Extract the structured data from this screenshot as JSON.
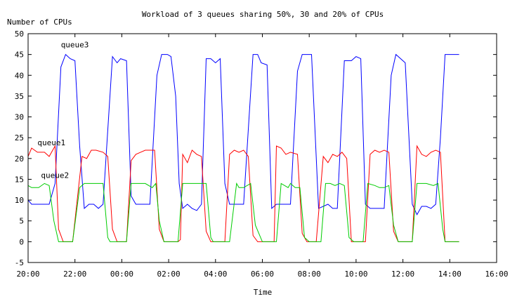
{
  "chart_data": {
    "type": "line",
    "title": "Workload of 3 queues sharing 50%, 30 and 20% of CPUs",
    "xlabel": "Time",
    "ylabel": "Number of CPUs",
    "ylim": [
      -5,
      50
    ],
    "yticks": [
      -5,
      0,
      5,
      10,
      15,
      20,
      25,
      30,
      35,
      40,
      45,
      50
    ],
    "xlim": [
      0,
      20
    ],
    "xtick_values": [
      0,
      2,
      4,
      6,
      8,
      10,
      12,
      14,
      16,
      18,
      20
    ],
    "xtick_labels": [
      "20:00",
      "22:00",
      "00:00",
      "02:00",
      "04:00",
      "06:00",
      "08:00",
      "10:00",
      "12:00",
      "14:00",
      "16:00"
    ],
    "grid": false,
    "legend": "inline labels",
    "series": [
      {
        "name": "queue3",
        "color": "#0000ff",
        "label_at": [
          1.4,
          46.7
        ],
        "points": [
          [
            0.0,
            10.0
          ],
          [
            0.15,
            9.0
          ],
          [
            0.9,
            9.0
          ],
          [
            1.15,
            14.0
          ],
          [
            1.4,
            42.0
          ],
          [
            1.6,
            45.0
          ],
          [
            1.8,
            44.0
          ],
          [
            2.0,
            43.5
          ],
          [
            2.2,
            23.0
          ],
          [
            2.4,
            8.0
          ],
          [
            2.6,
            9.0
          ],
          [
            2.8,
            9.0
          ],
          [
            3.0,
            8.0
          ],
          [
            3.2,
            9.0
          ],
          [
            3.6,
            44.5
          ],
          [
            3.8,
            43.0
          ],
          [
            3.95,
            44.0
          ],
          [
            4.2,
            43.5
          ],
          [
            4.4,
            11.0
          ],
          [
            4.6,
            9.0
          ],
          [
            5.2,
            9.0
          ],
          [
            5.5,
            40.0
          ],
          [
            5.7,
            45.0
          ],
          [
            5.95,
            45.0
          ],
          [
            6.1,
            44.5
          ],
          [
            6.3,
            35.0
          ],
          [
            6.45,
            14.0
          ],
          [
            6.6,
            8.0
          ],
          [
            6.8,
            9.0
          ],
          [
            7.0,
            8.0
          ],
          [
            7.2,
            7.5
          ],
          [
            7.4,
            9.0
          ],
          [
            7.6,
            44.0
          ],
          [
            7.8,
            44.0
          ],
          [
            8.0,
            43.0
          ],
          [
            8.2,
            44.0
          ],
          [
            8.4,
            14.0
          ],
          [
            8.6,
            9.0
          ],
          [
            9.2,
            9.0
          ],
          [
            9.6,
            45.0
          ],
          [
            9.8,
            45.0
          ],
          [
            9.95,
            43.0
          ],
          [
            10.2,
            42.5
          ],
          [
            10.4,
            8.0
          ],
          [
            10.6,
            9.0
          ],
          [
            11.0,
            9.0
          ],
          [
            11.2,
            9.0
          ],
          [
            11.5,
            41.0
          ],
          [
            11.7,
            45.0
          ],
          [
            12.1,
            45.0
          ],
          [
            12.4,
            8.0
          ],
          [
            12.6,
            8.5
          ],
          [
            12.8,
            9.0
          ],
          [
            13.0,
            8.0
          ],
          [
            13.2,
            8.0
          ],
          [
            13.5,
            43.5
          ],
          [
            13.8,
            43.5
          ],
          [
            14.0,
            44.5
          ],
          [
            14.2,
            44.0
          ],
          [
            14.4,
            9.0
          ],
          [
            14.6,
            8.0
          ],
          [
            15.2,
            8.0
          ],
          [
            15.5,
            40.0
          ],
          [
            15.7,
            45.0
          ],
          [
            16.1,
            43.0
          ],
          [
            16.4,
            9.0
          ],
          [
            16.6,
            6.5
          ],
          [
            16.8,
            8.5
          ],
          [
            17.0,
            8.5
          ],
          [
            17.2,
            8.0
          ],
          [
            17.4,
            9.0
          ],
          [
            17.6,
            25.0
          ],
          [
            17.8,
            45.0
          ],
          [
            18.4,
            45.0
          ]
        ]
      },
      {
        "name": "queue1",
        "color": "#ff0000",
        "label_at": [
          0.4,
          23.2
        ],
        "points": [
          [
            0.0,
            20.5
          ],
          [
            0.15,
            22.5
          ],
          [
            0.4,
            21.5
          ],
          [
            0.7,
            21.5
          ],
          [
            0.9,
            20.5
          ],
          [
            1.15,
            23.0
          ],
          [
            1.3,
            3.0
          ],
          [
            1.5,
            0.0
          ],
          [
            1.9,
            0.0
          ],
          [
            2.3,
            20.5
          ],
          [
            2.5,
            20.0
          ],
          [
            2.7,
            22.0
          ],
          [
            2.9,
            22.0
          ],
          [
            3.2,
            21.5
          ],
          [
            3.4,
            20.5
          ],
          [
            3.6,
            3.0
          ],
          [
            3.8,
            0.0
          ],
          [
            4.2,
            0.0
          ],
          [
            4.4,
            19.5
          ],
          [
            4.6,
            21.0
          ],
          [
            4.8,
            21.5
          ],
          [
            5.0,
            22.0
          ],
          [
            5.4,
            22.0
          ],
          [
            5.6,
            3.0
          ],
          [
            5.8,
            0.0
          ],
          [
            6.4,
            0.0
          ],
          [
            6.5,
            0.5
          ],
          [
            6.6,
            21.0
          ],
          [
            6.8,
            19.0
          ],
          [
            7.0,
            22.0
          ],
          [
            7.2,
            21.0
          ],
          [
            7.4,
            20.5
          ],
          [
            7.6,
            2.5
          ],
          [
            7.8,
            0.0
          ],
          [
            8.4,
            0.0
          ],
          [
            8.6,
            21.0
          ],
          [
            8.8,
            22.0
          ],
          [
            9.0,
            21.5
          ],
          [
            9.2,
            22.0
          ],
          [
            9.4,
            20.5
          ],
          [
            9.6,
            1.5
          ],
          [
            9.8,
            0.0
          ],
          [
            10.5,
            0.0
          ],
          [
            10.6,
            23.0
          ],
          [
            10.8,
            22.5
          ],
          [
            11.0,
            21.0
          ],
          [
            11.2,
            21.5
          ],
          [
            11.5,
            21.0
          ],
          [
            11.7,
            2.0
          ],
          [
            11.9,
            0.0
          ],
          [
            12.3,
            0.0
          ],
          [
            12.6,
            20.5
          ],
          [
            12.8,
            19.0
          ],
          [
            13.0,
            21.0
          ],
          [
            13.2,
            20.5
          ],
          [
            13.4,
            21.5
          ],
          [
            13.6,
            20.0
          ],
          [
            13.8,
            0.0
          ],
          [
            14.4,
            0.0
          ],
          [
            14.6,
            21.0
          ],
          [
            14.8,
            22.0
          ],
          [
            15.0,
            21.5
          ],
          [
            15.2,
            22.0
          ],
          [
            15.4,
            21.5
          ],
          [
            15.6,
            2.5
          ],
          [
            15.8,
            0.0
          ],
          [
            16.4,
            0.0
          ],
          [
            16.6,
            23.0
          ],
          [
            16.8,
            21.0
          ],
          [
            17.0,
            20.5
          ],
          [
            17.2,
            21.5
          ],
          [
            17.4,
            22.0
          ],
          [
            17.6,
            21.5
          ],
          [
            17.8,
            0.0
          ],
          [
            18.4,
            0.0
          ]
        ]
      },
      {
        "name": "queue2",
        "color": "#00cc00",
        "label_at": [
          0.55,
          15.3
        ],
        "points": [
          [
            0.0,
            13.5
          ],
          [
            0.15,
            13.0
          ],
          [
            0.45,
            13.0
          ],
          [
            0.7,
            14.0
          ],
          [
            0.9,
            13.5
          ],
          [
            1.1,
            5.0
          ],
          [
            1.3,
            0.0
          ],
          [
            1.9,
            0.0
          ],
          [
            2.2,
            13.0
          ],
          [
            2.4,
            14.0
          ],
          [
            3.2,
            14.0
          ],
          [
            3.4,
            1.0
          ],
          [
            3.5,
            0.0
          ],
          [
            4.2,
            0.0
          ],
          [
            4.4,
            14.0
          ],
          [
            5.0,
            14.0
          ],
          [
            5.3,
            13.0
          ],
          [
            5.45,
            14.0
          ],
          [
            5.6,
            5.0
          ],
          [
            5.8,
            0.0
          ],
          [
            6.4,
            0.0
          ],
          [
            6.6,
            14.0
          ],
          [
            7.6,
            14.0
          ],
          [
            7.8,
            1.0
          ],
          [
            7.9,
            0.0
          ],
          [
            8.6,
            0.0
          ],
          [
            8.9,
            14.0
          ],
          [
            9.0,
            13.0
          ],
          [
            9.2,
            13.0
          ],
          [
            9.5,
            14.0
          ],
          [
            9.7,
            4.0
          ],
          [
            10.0,
            0.0
          ],
          [
            10.6,
            0.0
          ],
          [
            10.8,
            14.0
          ],
          [
            11.1,
            13.0
          ],
          [
            11.2,
            14.0
          ],
          [
            11.4,
            13.0
          ],
          [
            11.6,
            13.0
          ],
          [
            11.8,
            1.0
          ],
          [
            12.0,
            0.0
          ],
          [
            12.5,
            0.0
          ],
          [
            12.7,
            14.0
          ],
          [
            12.9,
            14.0
          ],
          [
            13.1,
            13.5
          ],
          [
            13.3,
            14.0
          ],
          [
            13.5,
            13.5
          ],
          [
            13.7,
            1.0
          ],
          [
            13.9,
            0.0
          ],
          [
            14.3,
            0.0
          ],
          [
            14.5,
            14.0
          ],
          [
            14.8,
            13.5
          ],
          [
            15.0,
            13.0
          ],
          [
            15.2,
            13.0
          ],
          [
            15.4,
            13.5
          ],
          [
            15.6,
            4.0
          ],
          [
            15.8,
            0.0
          ],
          [
            16.4,
            0.0
          ],
          [
            16.6,
            14.0
          ],
          [
            17.0,
            14.0
          ],
          [
            17.3,
            13.5
          ],
          [
            17.5,
            14.0
          ],
          [
            17.7,
            3.0
          ],
          [
            17.8,
            0.0
          ],
          [
            18.4,
            0.0
          ]
        ]
      }
    ]
  }
}
